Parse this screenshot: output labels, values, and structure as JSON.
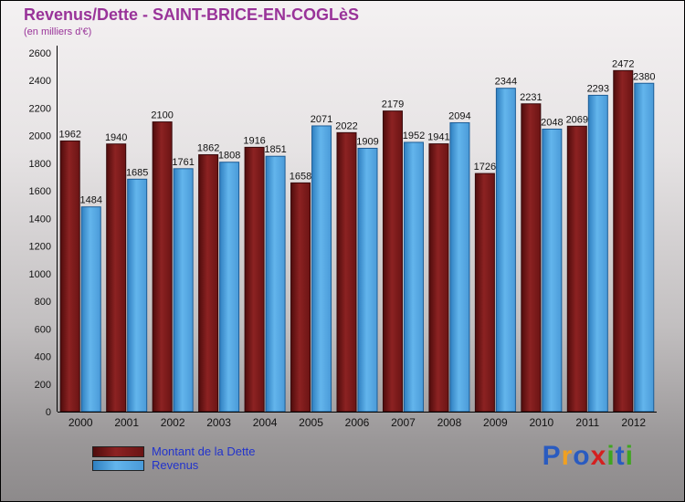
{
  "title": "Revenus/Dette - SAINT-BRICE-EN-COGLèS",
  "subtitle": "(en milliers d'€)",
  "chart_data": {
    "type": "bar",
    "title": "Revenus/Dette - SAINT-BRICE-EN-COGLèS",
    "subtitle": "(en milliers d'€)",
    "categories": [
      "2000",
      "2001",
      "2002",
      "2003",
      "2004",
      "2005",
      "2006",
      "2007",
      "2008",
      "2009",
      "2010",
      "2011",
      "2012"
    ],
    "series": [
      {
        "name": "Montant de la Dette",
        "color": "#7a1a1a",
        "values": [
          1962,
          1940,
          2100,
          1862,
          1916,
          1658,
          2022,
          2179,
          1941,
          1726,
          2231,
          2069,
          2472
        ]
      },
      {
        "name": "Revenus",
        "color": "#55aadd",
        "values": [
          1484,
          1685,
          1761,
          1808,
          1851,
          2071,
          1909,
          1952,
          2094,
          2344,
          2048,
          2293,
          2380
        ]
      }
    ],
    "ylim": [
      0,
      2600
    ],
    "ytick_step": 200,
    "grid": false,
    "legend_position": "bottom-left"
  },
  "legend": {
    "dette": "Montant de la Dette",
    "revenus": "Revenus"
  },
  "logo": {
    "text": "Proxiti",
    "letters": [
      {
        "ch": "P",
        "color": "#2a5bc0"
      },
      {
        "ch": "r",
        "color": "#f0a020"
      },
      {
        "ch": "o",
        "color": "#2a5bc0"
      },
      {
        "ch": "x",
        "color": "#d42020"
      },
      {
        "ch": "i",
        "color": "#3fa520"
      },
      {
        "ch": "t",
        "color": "#2a5bc0"
      },
      {
        "ch": "i",
        "color": "#3fa520"
      }
    ]
  },
  "colors": {
    "title": "#993399",
    "legend_text": "#2233cc",
    "dette_bar": "#7a1a1a",
    "revenus_bar": "#55aadd",
    "axis": "#000000"
  }
}
